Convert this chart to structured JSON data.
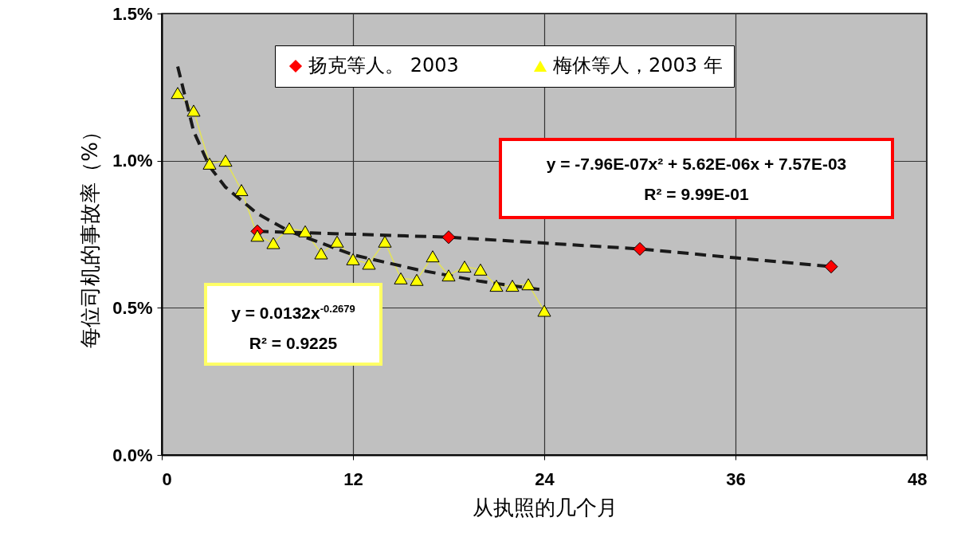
{
  "chart_data": {
    "type": "line",
    "xlabel": "从执照的几个月",
    "ylabel": "每位司机的事故率（%）",
    "xlim": [
      0,
      48
    ],
    "xticks": [
      0,
      12,
      24,
      36,
      48
    ],
    "ylim": [
      0,
      1.5
    ],
    "yticks": [
      {
        "value": 0,
        "label": "0.0%"
      },
      {
        "value": 0.5,
        "label": "0.5%"
      },
      {
        "value": 1,
        "label": "1.0%"
      },
      {
        "value": 1.5,
        "label": "1.5%"
      }
    ],
    "grid": true,
    "legend": "top",
    "series": [
      {
        "name": "扬克等人。 2003",
        "type": "scatter",
        "marker": "diamond",
        "color": "#ff0000",
        "x": [
          6,
          18,
          30,
          42
        ],
        "values": [
          0.76,
          0.74,
          0.7,
          0.64
        ]
      },
      {
        "name": "梅休等人，2003 年",
        "marker": "triangle",
        "color": "#ffff00",
        "x": [
          1,
          2,
          3,
          4,
          5,
          6,
          7,
          8,
          9,
          10,
          11,
          12,
          13,
          14,
          15,
          16,
          17,
          18,
          19,
          20,
          21,
          22,
          23,
          24
        ],
        "values": [
          1.23,
          1.17,
          0.99,
          1.0,
          0.9,
          0.745,
          0.72,
          0.77,
          0.76,
          0.685,
          0.725,
          0.665,
          0.65,
          0.725,
          0.6,
          0.595,
          0.675,
          0.61,
          0.64,
          0.63,
          0.575,
          0.575,
          0.58,
          0.49
        ]
      },
      {
        "marker": "none",
        "line_style": "dashed",
        "color": "#1a1a1a",
        "x": [
          1,
          2,
          3,
          4,
          6,
          8,
          12,
          16,
          20,
          24
        ],
        "values": [
          1.32,
          1.1,
          0.98,
          0.91,
          0.82,
          0.76,
          0.68,
          0.63,
          0.59,
          0.56
        ]
      },
      {
        "marker": "none",
        "line_style": "dashed",
        "color": "#1a1a1a",
        "x": [
          6,
          12,
          18,
          24,
          30,
          36,
          42
        ],
        "values": [
          0.76,
          0.75,
          0.74,
          0.72,
          0.7,
          0.67,
          0.64
        ]
      }
    ],
    "annotations": [
      "y = 0.0132x$^{-0.2679}$",
      "R² = 0.9225",
      "y = -7.96E-07x² + 5.62E-06x + 7.57E-03",
      "R² = 9.99E-01"
    ]
  }
}
